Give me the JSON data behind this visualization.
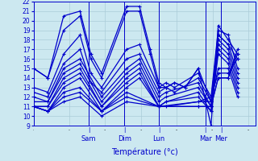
{
  "xlabel": "Température (°c)",
  "ylim": [
    9,
    22
  ],
  "xlim": [
    0,
    310
  ],
  "yticks": [
    9,
    10,
    11,
    12,
    13,
    14,
    15,
    16,
    17,
    18,
    19,
    20,
    21,
    22
  ],
  "day_labels": [
    "Sam",
    "Dim",
    "Lun",
    "Mar",
    "Mer"
  ],
  "background_color": "#cce8f0",
  "grid_color": "#aaccd8",
  "line_color": "#0000cc",
  "line_width": 0.9,
  "marker": "+",
  "marker_size": 3.5,
  "lines": [
    [
      0,
      15.0,
      20,
      14.0,
      42,
      20.5,
      65,
      21.0,
      80,
      16.5,
      95,
      14.5,
      130,
      21.5,
      148,
      21.5,
      163,
      17.0,
      175,
      13.5,
      185,
      13.0,
      197,
      13.5,
      212,
      13.0,
      230,
      15.0,
      248,
      9.0,
      258,
      19.5,
      272,
      18.0,
      285,
      16.5
    ],
    [
      0,
      15.0,
      20,
      14.0,
      42,
      19.0,
      65,
      20.5,
      80,
      16.0,
      95,
      14.0,
      130,
      21.0,
      148,
      21.0,
      163,
      16.5,
      175,
      13.0,
      185,
      13.0,
      197,
      13.5,
      212,
      13.0,
      230,
      15.0,
      248,
      11.5,
      258,
      18.5,
      272,
      17.5,
      285,
      16.0
    ],
    [
      0,
      13.0,
      20,
      12.5,
      42,
      16.5,
      65,
      18.5,
      80,
      14.5,
      95,
      13.0,
      130,
      17.0,
      148,
      17.5,
      175,
      13.0,
      185,
      13.5,
      197,
      13.0,
      230,
      14.5,
      248,
      12.0,
      258,
      19.0,
      272,
      18.5,
      285,
      15.0
    ],
    [
      0,
      12.5,
      20,
      12.0,
      42,
      15.5,
      65,
      17.0,
      80,
      13.5,
      95,
      12.5,
      130,
      16.0,
      148,
      16.5,
      175,
      12.5,
      185,
      13.0,
      197,
      12.5,
      230,
      14.0,
      248,
      11.5,
      258,
      18.5,
      272,
      17.5,
      285,
      14.5
    ],
    [
      0,
      12.0,
      20,
      11.5,
      42,
      15.0,
      65,
      16.0,
      95,
      12.0,
      130,
      15.0,
      148,
      16.0,
      175,
      12.0,
      185,
      12.5,
      230,
      13.5,
      248,
      11.0,
      258,
      18.0,
      272,
      17.0,
      285,
      14.0
    ],
    [
      0,
      11.5,
      20,
      11.5,
      42,
      14.5,
      65,
      15.5,
      95,
      11.5,
      130,
      14.5,
      148,
      15.5,
      175,
      11.5,
      185,
      12.0,
      230,
      13.0,
      248,
      11.0,
      258,
      17.5,
      272,
      16.5,
      285,
      13.5
    ],
    [
      0,
      11.0,
      20,
      11.0,
      42,
      14.0,
      65,
      15.0,
      95,
      11.0,
      130,
      14.0,
      148,
      15.0,
      175,
      11.0,
      185,
      11.5,
      230,
      12.5,
      248,
      10.5,
      258,
      17.0,
      272,
      16.0,
      285,
      13.0
    ],
    [
      0,
      11.0,
      20,
      11.0,
      42,
      13.5,
      65,
      14.5,
      95,
      11.0,
      130,
      13.5,
      148,
      14.5,
      175,
      11.0,
      185,
      11.5,
      230,
      12.0,
      248,
      10.5,
      258,
      16.5,
      272,
      15.5,
      285,
      12.5
    ],
    [
      0,
      11.0,
      20,
      10.5,
      42,
      13.0,
      65,
      14.0,
      95,
      10.5,
      130,
      13.0,
      148,
      14.0,
      175,
      11.0,
      185,
      11.0,
      230,
      11.5,
      248,
      11.5,
      258,
      15.0,
      272,
      15.0,
      285,
      12.0
    ],
    [
      0,
      11.0,
      20,
      10.5,
      42,
      12.5,
      65,
      13.0,
      95,
      10.5,
      130,
      12.5,
      175,
      11.0,
      230,
      11.5,
      248,
      12.0,
      258,
      14.5,
      272,
      14.5,
      285,
      16.0
    ],
    [
      0,
      11.0,
      20,
      10.5,
      42,
      12.0,
      65,
      12.5,
      95,
      10.5,
      130,
      12.0,
      175,
      11.0,
      230,
      11.0,
      248,
      11.0,
      258,
      14.0,
      272,
      14.0,
      285,
      17.0
    ],
    [
      0,
      11.0,
      20,
      10.5,
      42,
      11.5,
      65,
      12.0,
      95,
      10.0,
      130,
      11.5,
      175,
      11.0,
      230,
      11.0,
      248,
      11.0,
      258,
      14.0,
      272,
      14.0,
      285,
      16.5
    ]
  ]
}
